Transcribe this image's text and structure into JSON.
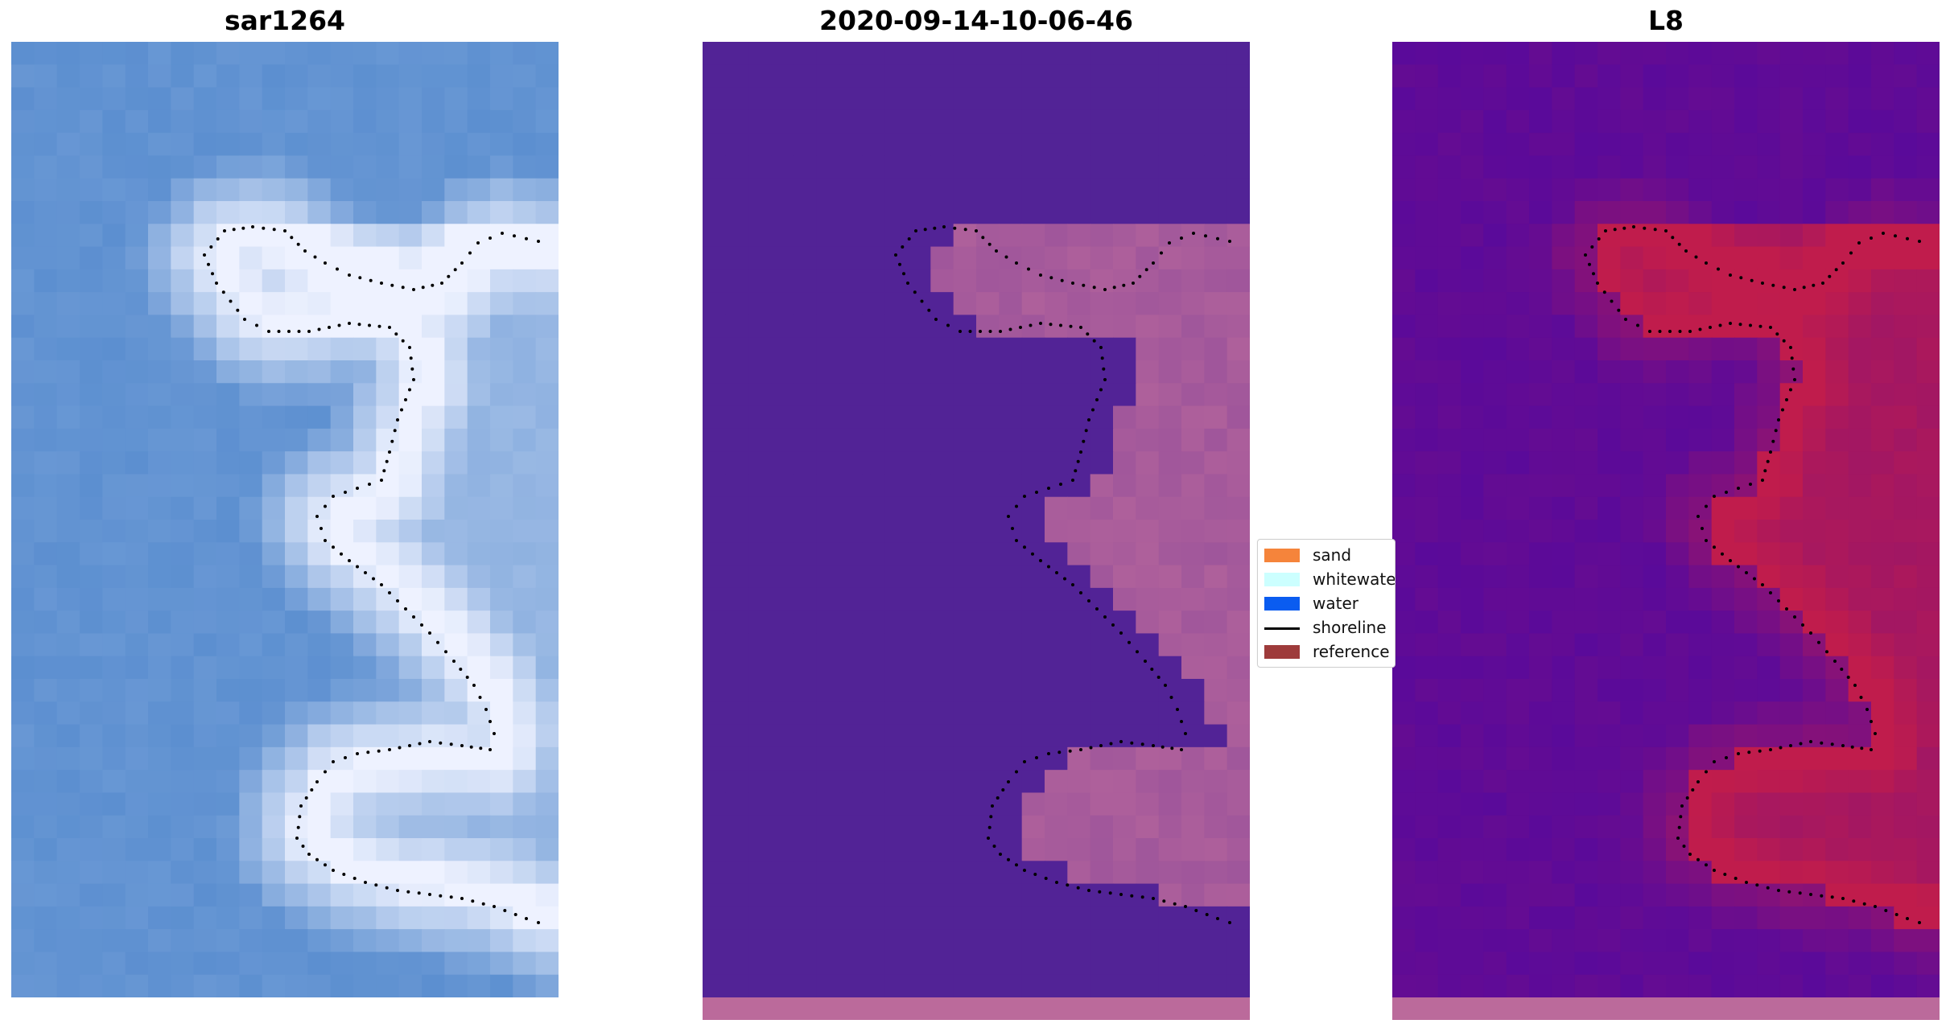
{
  "panels": [
    {
      "title": "sar1264"
    },
    {
      "title": "2020-09-14-10-06-46"
    },
    {
      "title": "L8"
    }
  ],
  "legend": {
    "items": [
      {
        "label": "sand",
        "color": "#f5843b",
        "kind": "patch"
      },
      {
        "label": "whitewater",
        "color": "#ccffff",
        "kind": "patch"
      },
      {
        "label": "water",
        "color": "#0a5cf0",
        "kind": "patch"
      },
      {
        "label": "shoreline",
        "color": "#000000",
        "kind": "line"
      },
      {
        "label": "reference",
        "color": "#9e3b3b",
        "kind": "patch"
      }
    ]
  },
  "colors": {
    "rgb_water": "#5c8fd0",
    "rgb_foam": "#eef2ff",
    "class_water": "#522396",
    "class_land": "#b9679c",
    "nir_water": "#5a0a9a",
    "nir_land": "#c01c4c"
  }
}
